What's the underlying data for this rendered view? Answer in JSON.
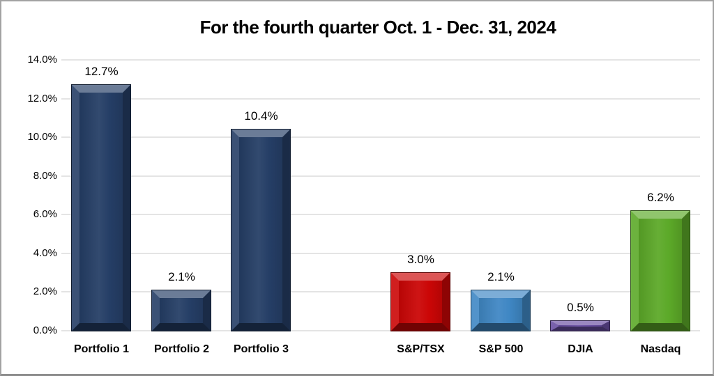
{
  "chart_data": {
    "type": "bar",
    "title": "For the fourth quarter Oct. 1 - Dec. 31, 2024",
    "categories": [
      "Portfolio 1",
      "Portfolio 2",
      "Portfolio 3",
      "",
      "S&P/TSX",
      "S&P 500",
      "DJIA",
      "Nasdaq"
    ],
    "values": [
      12.7,
      2.1,
      10.4,
      null,
      3.0,
      2.1,
      0.5,
      6.2
    ],
    "data_labels": [
      "12.7%",
      "2.1%",
      "10.4%",
      "",
      "3.0%",
      "2.1%",
      "0.5%",
      "6.2%"
    ],
    "bar_colors": [
      "#253e66",
      "#253e66",
      "#253e66",
      null,
      "#cb0606",
      "#3f87c4",
      "#6a4fa3",
      "#5ca928"
    ],
    "bar_style": "beveled-3d",
    "xlabel": "",
    "ylabel": "",
    "ylim": [
      0,
      14
    ],
    "ytick_step": 2,
    "ytick_labels": [
      "0.0%",
      "2.0%",
      "4.0%",
      "6.0%",
      "8.0%",
      "10.0%",
      "12.0%",
      "14.0%"
    ],
    "grid": true,
    "gridline_color": "#e4e4e4",
    "legend": false,
    "background_color": "#ffffff",
    "border_color": "#a3a3a3"
  }
}
